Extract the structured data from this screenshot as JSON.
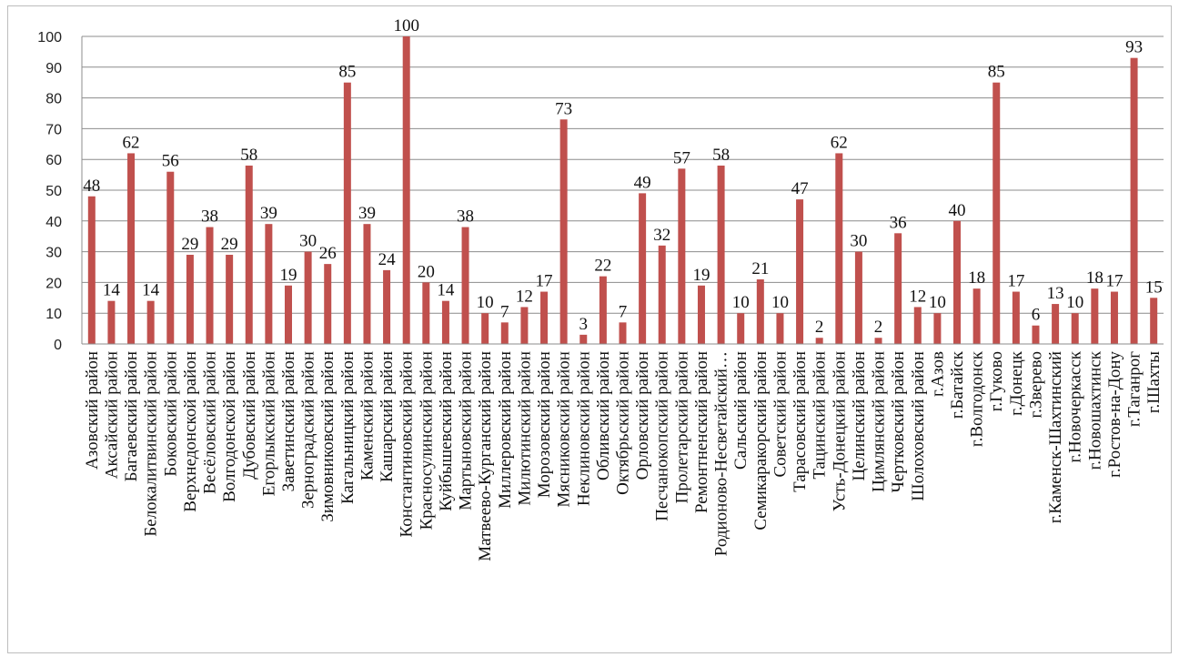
{
  "chart_data": {
    "type": "bar",
    "title": "",
    "xlabel": "",
    "ylabel": "",
    "ylim": [
      0,
      100
    ],
    "yticks": [
      0,
      10,
      20,
      30,
      40,
      50,
      60,
      70,
      80,
      90,
      100
    ],
    "grid": true,
    "legend": "none",
    "bar_color": "#C0504D",
    "grid_color": "#8c8c8c",
    "categories": [
      "Азовский район",
      "Аксайский район",
      "Багаевский район",
      "Белокалитвинский район",
      "Боковский район",
      "Верхнедонской район",
      "Весёловский район",
      "Волгодонской район",
      "Дубовский район",
      "Егорлыкский район",
      "Заветинский район",
      "Зерноградский район",
      "Зимовниковский район",
      "Кагальницкий район",
      "Каменский район",
      "Кашарский район",
      "Константиновский район",
      "Красносулинский район",
      "Куйбышевский район",
      "Мартыновский район",
      "Матвеево-Курганский район",
      "Миллеровский район",
      "Милютинский район",
      "Морозовский район",
      "Мясниковский район",
      "Неклиновский район",
      "Обливский район",
      "Октябрьский район",
      "Орловский район",
      "Песчанокопский район",
      "Пролетарский район",
      "Ремонтненский район",
      "Родионово-Несветайский…",
      "Сальский район",
      "Семикаракорский район",
      "Советский район",
      "Тарасовский район",
      "Тацинский район",
      "Усть-Донецкий район",
      "Целинский район",
      "Цимлянский район",
      "Чертковский район",
      "Шолоховский район",
      "г.Азов",
      "г.Батайск",
      "г.Волгодонск",
      "г.Гуково",
      "г.Донецк",
      "г.Зверево",
      "г.Каменск-Шахтинский",
      "г.Новочеркасск",
      "г.Новошахтинск",
      "г.Ростов-на-Дону",
      "г.Таганрог",
      "г.Шахты"
    ],
    "values": [
      48,
      14,
      62,
      14,
      56,
      29,
      38,
      29,
      58,
      39,
      19,
      30,
      26,
      85,
      39,
      24,
      100,
      20,
      14,
      38,
      10,
      7,
      12,
      17,
      73,
      3,
      22,
      7,
      49,
      32,
      57,
      19,
      58,
      10,
      21,
      10,
      47,
      2,
      62,
      30,
      2,
      36,
      12,
      10,
      40,
      18,
      85,
      17,
      6,
      13,
      10,
      18,
      17,
      93,
      15
    ]
  }
}
